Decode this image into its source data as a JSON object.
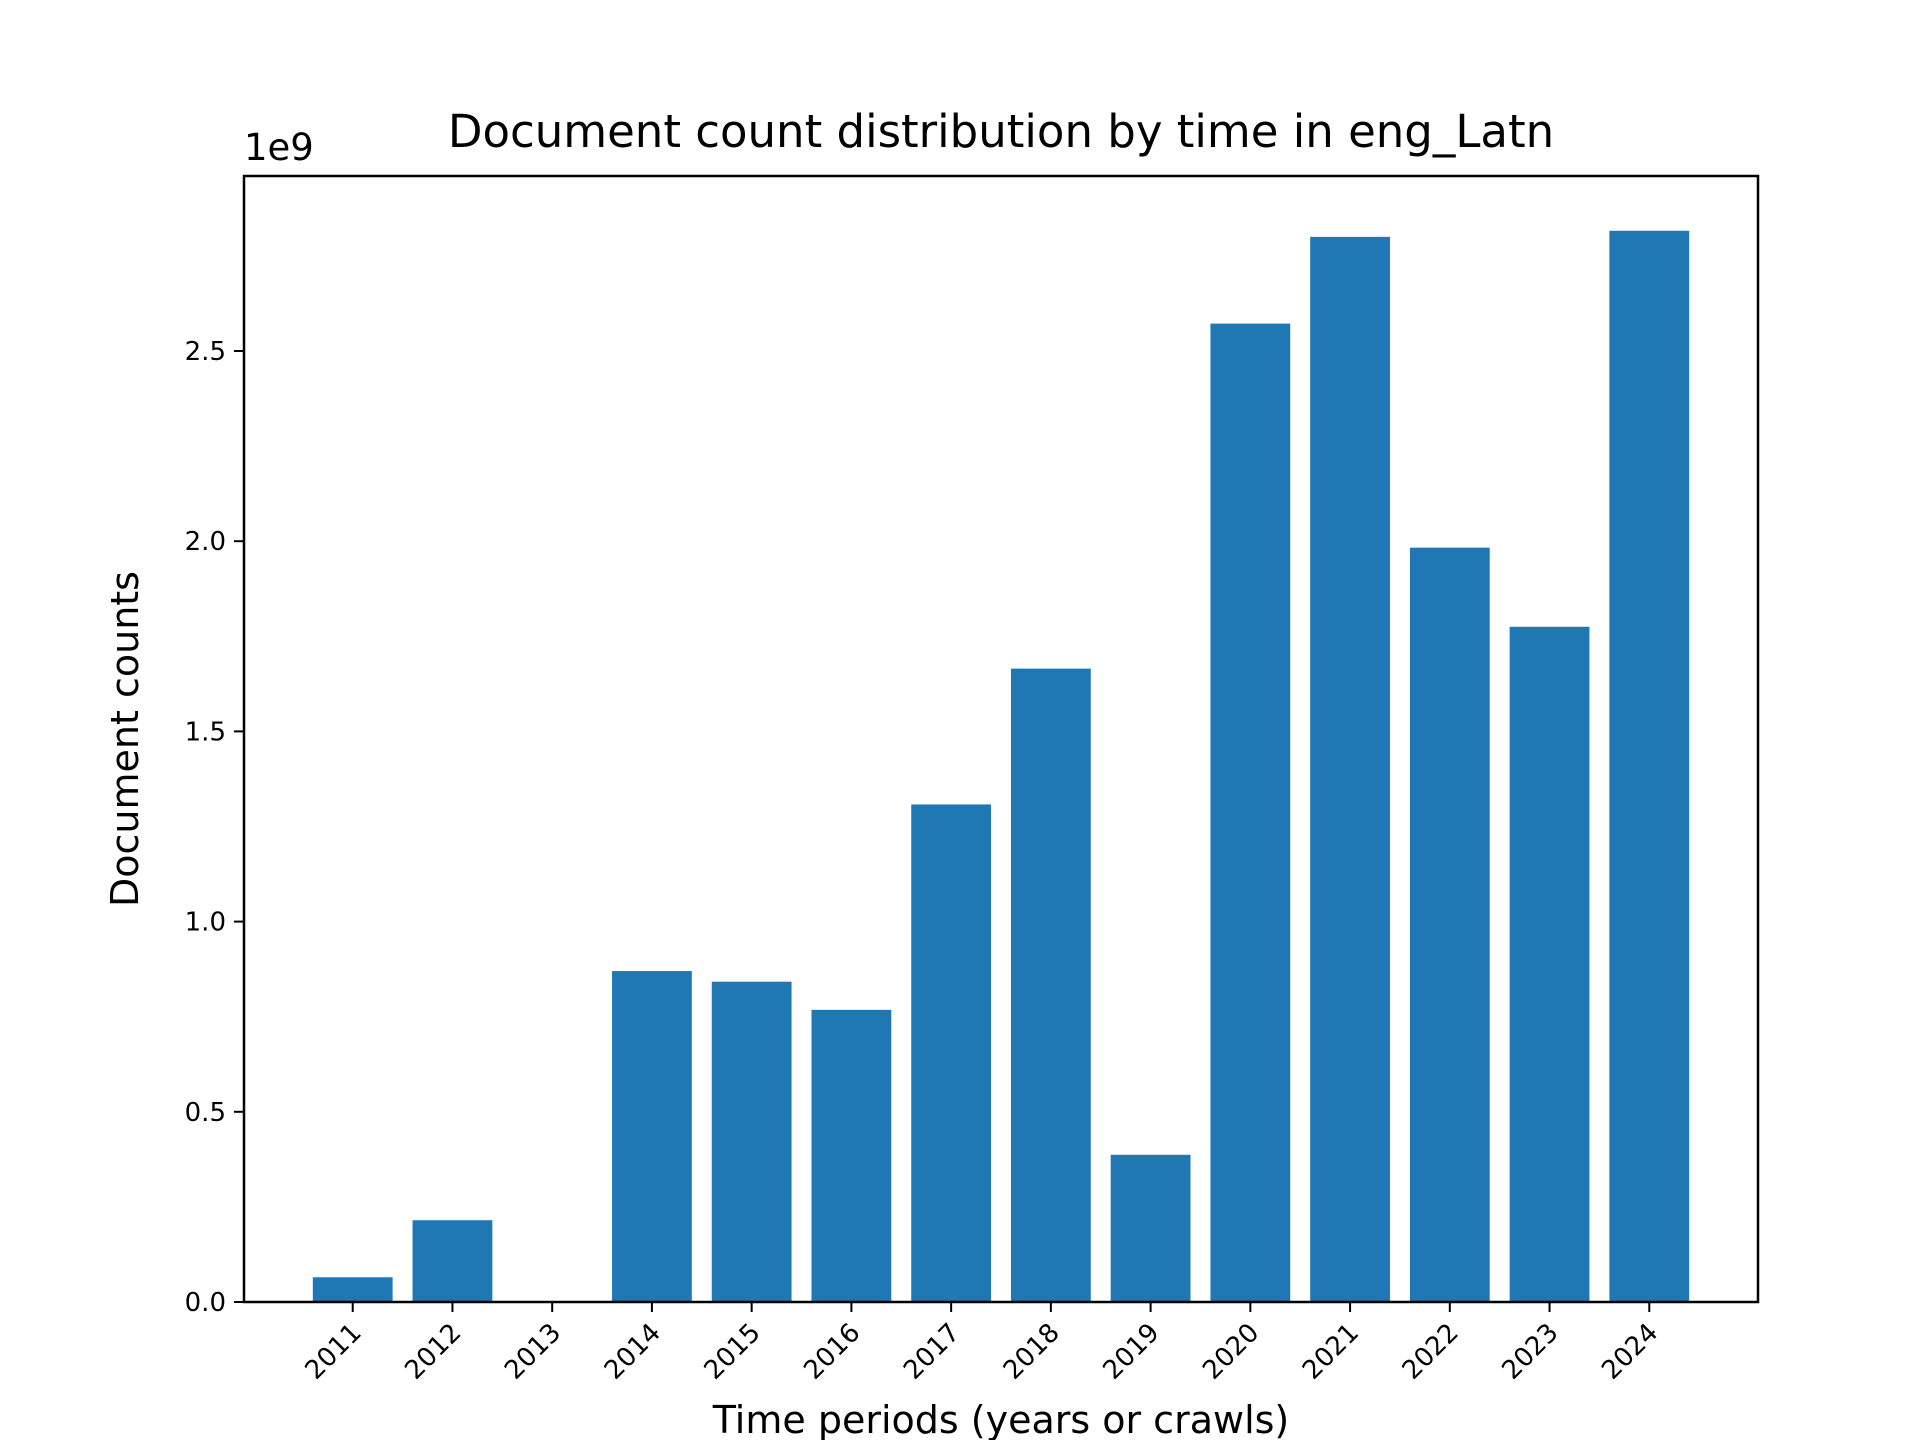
{
  "chart_data": {
    "type": "bar",
    "title": "Document count distribution by time in eng_Latn",
    "xlabel": "Time periods (years or crawls)",
    "ylabel": "Document counts",
    "y_offset_label": "1e9",
    "y_scale": 1000000000,
    "categories": [
      "2011",
      "2012",
      "2013",
      "2014",
      "2015",
      "2016",
      "2017",
      "2018",
      "2019",
      "2020",
      "2021",
      "2022",
      "2023",
      "2024"
    ],
    "values": [
      65000000,
      215000000,
      0,
      870000000,
      842000000,
      768000000,
      1308000000,
      1665000000,
      387000000,
      2572000000,
      2800000000,
      1983000000,
      1775000000,
      2816000000
    ],
    "ylim": [
      0,
      2960000000
    ],
    "yticks": [
      0,
      500000000,
      1000000000,
      1500000000,
      2000000000,
      2500000000
    ],
    "ytick_labels": [
      "0.0",
      "0.5",
      "1.0",
      "1.5",
      "2.0",
      "2.5"
    ],
    "bar_color": "#1f77b4",
    "grid": false,
    "legend": "none"
  }
}
